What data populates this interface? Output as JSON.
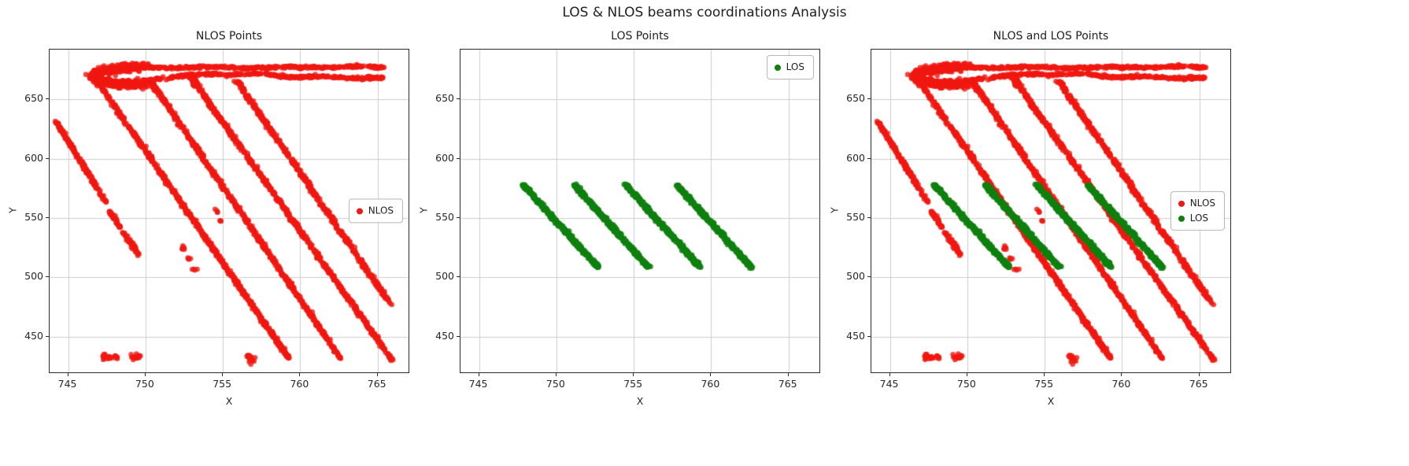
{
  "figure_title": "LOS & NLOS beams coordinations Analysis",
  "colors": {
    "nlos": "#f01810",
    "los": "#0e800e"
  },
  "chart_data": [
    {
      "type": "scatter",
      "title": "NLOS Points",
      "xlabel": "X",
      "ylabel": "Y",
      "xlim": [
        743.8,
        767.0
      ],
      "ylim": [
        420,
        692
      ],
      "xticks": [
        745,
        750,
        755,
        760,
        765
      ],
      "yticks": [
        450,
        500,
        550,
        600,
        650
      ],
      "grid": true,
      "legend": {
        "position": "center-right",
        "entries": [
          {
            "label": "NLOS",
            "color": "nlos"
          }
        ]
      },
      "series": [
        {
          "name": "NLOS",
          "source": "nlos",
          "color": "nlos",
          "marker_px": 3.3,
          "opacity": 0.8
        }
      ]
    },
    {
      "type": "scatter",
      "title": "LOS Points",
      "xlabel": "X",
      "ylabel": "Y",
      "xlim": [
        743.8,
        767.0
      ],
      "ylim": [
        420,
        692
      ],
      "xticks": [
        745,
        750,
        755,
        760,
        765
      ],
      "yticks": [
        450,
        500,
        550,
        600,
        650
      ],
      "grid": true,
      "legend": {
        "position": "upper-right",
        "entries": [
          {
            "label": "LOS",
            "color": "los"
          }
        ]
      },
      "series": [
        {
          "name": "LOS",
          "source": "los",
          "color": "los",
          "marker_px": 3.5,
          "opacity": 0.85
        }
      ]
    },
    {
      "type": "scatter",
      "title": "NLOS and LOS Points",
      "xlabel": "X",
      "ylabel": "Y",
      "xlim": [
        743.8,
        767.0
      ],
      "ylim": [
        420,
        692
      ],
      "xticks": [
        745,
        750,
        755,
        760,
        765
      ],
      "yticks": [
        450,
        500,
        550,
        600,
        650
      ],
      "grid": true,
      "legend": {
        "position": "center-right",
        "entries": [
          {
            "label": "NLOS",
            "color": "nlos"
          },
          {
            "label": "LOS",
            "color": "los"
          }
        ]
      },
      "series": [
        {
          "name": "NLOS",
          "source": "nlos",
          "color": "nlos",
          "marker_px": 3.3,
          "opacity": 0.8
        },
        {
          "name": "LOS",
          "source": "los",
          "color": "los",
          "marker_px": 3.5,
          "opacity": 0.85
        }
      ]
    }
  ],
  "point_structures": {
    "nlos": {
      "segments": [
        {
          "pts": [
            [
              744.15,
              633.0
            ],
            [
              747.45,
              563.0
            ]
          ],
          "n": 180,
          "jx": 0.05,
          "jy": 0.7
        },
        {
          "pts": [
            [
              747.7,
              556.0
            ],
            [
              748.35,
              542.0
            ]
          ],
          "n": 40,
          "jx": 0.05,
          "jy": 0.6
        },
        {
          "pts": [
            [
              748.55,
              538.0
            ],
            [
              749.6,
              519.0
            ]
          ],
          "n": 55,
          "jx": 0.05,
          "jy": 0.6
        },
        {
          "pts": [
            [
              746.85,
              666.0
            ],
            [
              759.25,
              432.0
            ]
          ],
          "n": 640,
          "jx": 0.06,
          "jy": 0.6
        },
        {
          "pts": [
            [
              750.3,
              666.0
            ],
            [
              762.6,
              432.0
            ]
          ],
          "n": 640,
          "jx": 0.06,
          "jy": 0.6
        },
        {
          "pts": [
            [
              753.35,
              661.0
            ],
            [
              765.9,
              431.0
            ]
          ],
          "n": 640,
          "jx": 0.06,
          "jy": 0.6
        },
        {
          "pts": [
            [
              755.9,
              666.0
            ],
            [
              765.85,
              477.0
            ]
          ],
          "n": 500,
          "jx": 0.06,
          "jy": 0.6
        },
        {
          "pts": [
            [
              747.9,
              675.5
            ],
            [
              749.5,
              677.3
            ],
            [
              752.0,
              676.4
            ],
            [
              754.2,
              677.6
            ],
            [
              756.5,
              676.2
            ],
            [
              759.0,
              677.5
            ],
            [
              761.5,
              676.6
            ],
            [
              763.2,
              677.8
            ],
            [
              765.4,
              677.0
            ]
          ],
          "n": 430,
          "jx": 0.06,
          "jy": 0.55
        },
        {
          "pts": [
            [
              749.8,
              665.5
            ],
            [
              751.5,
              668.0
            ],
            [
              753.2,
              671.3
            ],
            [
              755.5,
              670.8
            ],
            [
              757.5,
              671.8
            ],
            [
              759.5,
              668.5
            ],
            [
              761.5,
              669.6
            ],
            [
              763.5,
              667.6
            ],
            [
              765.3,
              668.6
            ]
          ],
          "n": 350,
          "jx": 0.06,
          "jy": 0.55
        },
        {
          "pts": [
            [
              749.9,
              662.6
            ],
            [
              748.1,
              663.4
            ],
            [
              746.9,
              666.3
            ],
            [
              746.6,
              670.0
            ],
            [
              747.3,
              674.2
            ],
            [
              748.7,
              676.6
            ],
            [
              749.9,
              677.4
            ]
          ],
          "n": 560,
          "jx": 0.18,
          "jy": 1.6
        },
        {
          "pts": [
            [
              753.3,
              661.5
            ],
            [
              752.9,
              671.0
            ]
          ],
          "n": 70,
          "jx": 0.1,
          "jy": 0.8
        }
      ],
      "clusters": [
        {
          "c": [
            752.45,
            524.5
          ],
          "s": 0.1,
          "n": 6
        },
        {
          "c": [
            752.8,
            516.5
          ],
          "s": 0.08,
          "n": 4
        },
        {
          "c": [
            753.15,
            507.5
          ],
          "s": 0.08,
          "n": 4
        },
        {
          "c": [
            754.65,
            556.5
          ],
          "s": 0.08,
          "n": 4
        },
        {
          "c": [
            754.95,
            547.0
          ],
          "s": 0.07,
          "n": 3
        },
        {
          "c": [
            747.25,
            433.5
          ],
          "s": 0.1,
          "n": 10
        },
        {
          "c": [
            747.65,
            433.5
          ],
          "s": 0.09,
          "n": 8
        },
        {
          "c": [
            748.05,
            433.5
          ],
          "s": 0.08,
          "n": 7
        },
        {
          "c": [
            749.3,
            433.2
          ],
          "s": 0.12,
          "n": 12
        },
        {
          "c": [
            749.55,
            433.5
          ],
          "s": 0.08,
          "n": 6
        },
        {
          "c": [
            756.8,
            431.9
          ],
          "s": 0.14,
          "n": 16
        }
      ]
    },
    "los": {
      "segments": [
        {
          "pts": [
            [
              747.85,
              578.0
            ],
            [
              752.7,
              508.5
            ]
          ],
          "n": 330,
          "jx": 0.06,
          "jy": 0.6
        },
        {
          "pts": [
            [
              751.15,
              578.0
            ],
            [
              755.95,
              508.5
            ]
          ],
          "n": 330,
          "jx": 0.06,
          "jy": 0.6
        },
        {
          "pts": [
            [
              754.45,
              578.5
            ],
            [
              759.3,
              508.5
            ]
          ],
          "n": 330,
          "jx": 0.06,
          "jy": 0.6
        },
        {
          "pts": [
            [
              757.75,
              578.5
            ],
            [
              762.6,
              508.5
            ]
          ],
          "n": 330,
          "jx": 0.06,
          "jy": 0.6
        }
      ],
      "clusters": []
    }
  }
}
